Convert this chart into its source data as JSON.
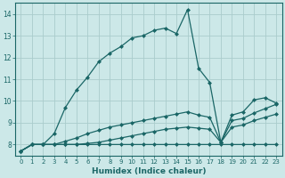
{
  "xlabel": "Humidex (Indice chaleur)",
  "background_color": "#cce8e8",
  "grid_color": "#aacccc",
  "line_color": "#1a6666",
  "xlim": [
    -0.5,
    23.5
  ],
  "ylim": [
    7.5,
    14.5
  ],
  "yticks": [
    8,
    9,
    10,
    11,
    12,
    13,
    14
  ],
  "xticks": [
    0,
    1,
    2,
    3,
    4,
    5,
    6,
    7,
    8,
    9,
    10,
    11,
    12,
    13,
    14,
    15,
    16,
    17,
    18,
    19,
    20,
    21,
    22,
    23
  ],
  "curves": [
    {
      "x": [
        0,
        1,
        2,
        3,
        4,
        5,
        6,
        7,
        8,
        9,
        10,
        11,
        12,
        13,
        14,
        15,
        16,
        17,
        18,
        19,
        20,
        21,
        22,
        23
      ],
      "y": [
        7.7,
        8.0,
        8.0,
        8.5,
        9.7,
        10.5,
        11.1,
        11.8,
        12.2,
        12.5,
        12.9,
        13.0,
        13.25,
        13.35,
        13.1,
        14.2,
        11.5,
        10.85,
        8.1,
        9.35,
        9.5,
        10.05,
        10.15,
        9.9
      ],
      "linestyle": "-",
      "linewidth": 0.9,
      "marker": "D",
      "markersize": 2.0
    },
    {
      "x": [
        0,
        1,
        2,
        3,
        4,
        5,
        6,
        7,
        8,
        9,
        10,
        11,
        12,
        13,
        14,
        15,
        16,
        17,
        18,
        19,
        20,
        21,
        22,
        23
      ],
      "y": [
        7.7,
        8.0,
        8.0,
        8.0,
        8.15,
        8.3,
        8.5,
        8.65,
        8.8,
        8.9,
        9.0,
        9.1,
        9.2,
        9.3,
        9.4,
        9.5,
        9.35,
        9.25,
        8.1,
        9.1,
        9.2,
        9.45,
        9.65,
        9.85
      ],
      "linestyle": "-",
      "linewidth": 0.9,
      "marker": "D",
      "markersize": 2.0
    },
    {
      "x": [
        0,
        1,
        2,
        3,
        4,
        5,
        6,
        7,
        8,
        9,
        10,
        11,
        12,
        13,
        14,
        15,
        16,
        17,
        18,
        19,
        20,
        21,
        22,
        23
      ],
      "y": [
        7.7,
        8.0,
        8.0,
        8.0,
        8.0,
        8.0,
        8.05,
        8.1,
        8.2,
        8.3,
        8.4,
        8.5,
        8.6,
        8.7,
        8.75,
        8.8,
        8.75,
        8.7,
        8.1,
        8.8,
        8.9,
        9.1,
        9.25,
        9.4
      ],
      "linestyle": "-",
      "linewidth": 0.9,
      "marker": "D",
      "markersize": 2.0
    },
    {
      "x": [
        0,
        1,
        2,
        3,
        4,
        5,
        6,
        7,
        8,
        9,
        10,
        11,
        12,
        13,
        14,
        15,
        16,
        17,
        18,
        19,
        20,
        21,
        22,
        23
      ],
      "y": [
        7.7,
        8.0,
        8.0,
        8.0,
        8.0,
        8.0,
        8.0,
        8.0,
        8.0,
        8.0,
        8.0,
        8.0,
        8.0,
        8.0,
        8.0,
        8.0,
        8.0,
        8.0,
        8.0,
        8.0,
        8.0,
        8.0,
        8.0,
        8.0
      ],
      "linestyle": "-",
      "linewidth": 0.9,
      "marker": "D",
      "markersize": 2.0
    }
  ]
}
